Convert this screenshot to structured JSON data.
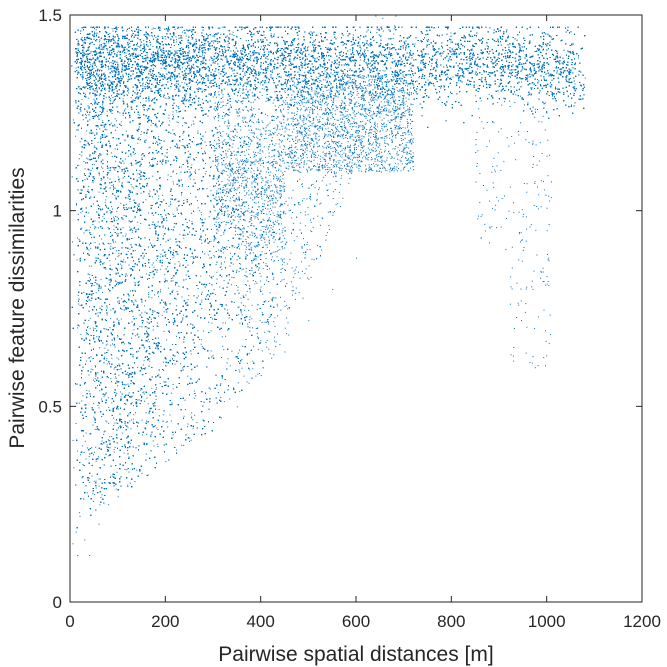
{
  "chart_data": {
    "type": "scatter",
    "xlabel": "Pairwise spatial distances [m]",
    "ylabel": "Pairwise feature dissimilarities",
    "xlim": [
      0,
      1200
    ],
    "ylim": [
      0,
      1.5
    ],
    "xticks": [
      0,
      200,
      400,
      600,
      800,
      1000,
      1200
    ],
    "yticks": [
      0,
      0.5,
      1,
      1.5
    ],
    "xtick_labels": [
      "0",
      "200",
      "400",
      "600",
      "800",
      "1000",
      "1200"
    ],
    "ytick_labels": [
      "0",
      "0.5",
      "1",
      "1.5"
    ],
    "grid": false,
    "marker_color": "#0072BD",
    "series": [
      {
        "points": [
          [
            5,
            0.15
          ],
          [
            12,
            0.18
          ],
          [
            20,
            0.22
          ],
          [
            35,
            0.28
          ],
          [
            50,
            0.31
          ],
          [
            40,
            0.12
          ],
          [
            15,
            0.12
          ],
          [
            30,
            0.16
          ],
          [
            60,
            0.2
          ],
          [
            80,
            0.25
          ],
          [
            100,
            0.27
          ],
          [
            120,
            0.3
          ],
          [
            150,
            0.33
          ],
          [
            200,
            0.36
          ],
          [
            250,
            0.42
          ],
          [
            300,
            0.46
          ],
          [
            350,
            0.5
          ],
          [
            400,
            0.58
          ],
          [
            450,
            0.64
          ],
          [
            500,
            0.72
          ],
          [
            550,
            0.8
          ],
          [
            600,
            0.88
          ],
          [
            25,
            1.0
          ],
          [
            40,
            1.2
          ],
          [
            60,
            1.35
          ],
          [
            100,
            1.42
          ],
          [
            200,
            1.44
          ],
          [
            300,
            1.43
          ],
          [
            400,
            1.42
          ],
          [
            500,
            1.42
          ],
          [
            600,
            1.41
          ],
          [
            700,
            1.4
          ],
          [
            800,
            1.4
          ],
          [
            900,
            1.39
          ],
          [
            1000,
            1.38
          ],
          [
            1050,
            1.36
          ],
          [
            1080,
            1.34
          ],
          [
            920,
            1.0
          ],
          [
            950,
            0.9
          ],
          [
            970,
            0.8
          ],
          [
            975,
            0.6
          ],
          [
            1000,
            0.95
          ],
          [
            850,
            1.15
          ],
          [
            700,
            1.25
          ],
          [
            650,
            1.3
          ],
          [
            480,
            1.1
          ],
          [
            380,
            0.9
          ]
        ]
      }
    ]
  }
}
